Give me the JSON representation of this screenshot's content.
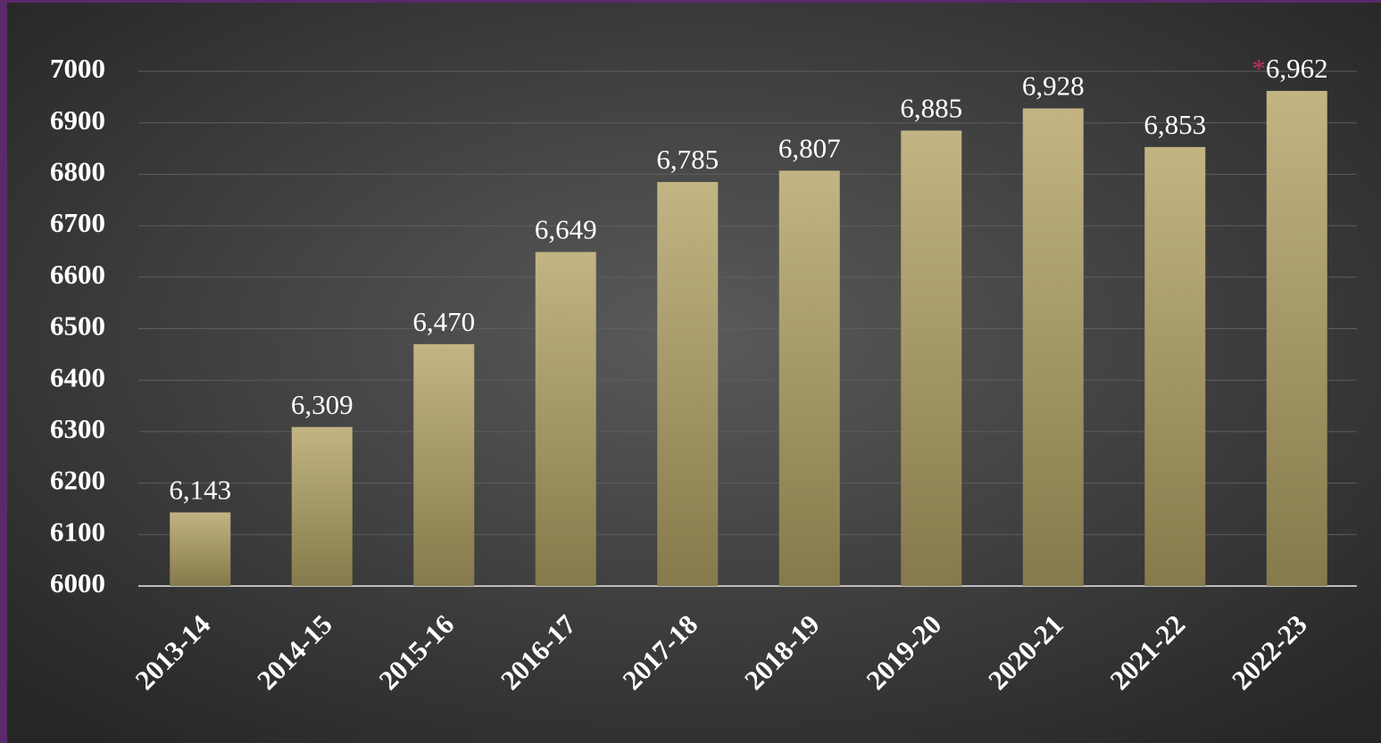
{
  "chart_data": {
    "type": "bar",
    "categories": [
      "2013-14",
      "2014-15",
      "2015-16",
      "2016-17",
      "2017-18",
      "2018-19",
      "2019-20",
      "2020-21",
      "2021-22",
      "2022-23"
    ],
    "values": [
      6143,
      6309,
      6470,
      6649,
      6785,
      6807,
      6885,
      6928,
      6853,
      6962
    ],
    "value_labels": [
      "6,143",
      "6,309",
      "6,470",
      "6,649",
      "6,785",
      "6,807",
      "6,885",
      "6,928",
      "6,853",
      "6,962"
    ],
    "annotation": "*",
    "color": "#b0a271",
    "ylim": [
      6000,
      7000
    ],
    "yticks": [
      6000,
      6100,
      6200,
      6300,
      6400,
      6500,
      6600,
      6700,
      6800,
      6900,
      7000
    ],
    "grid": true
  }
}
